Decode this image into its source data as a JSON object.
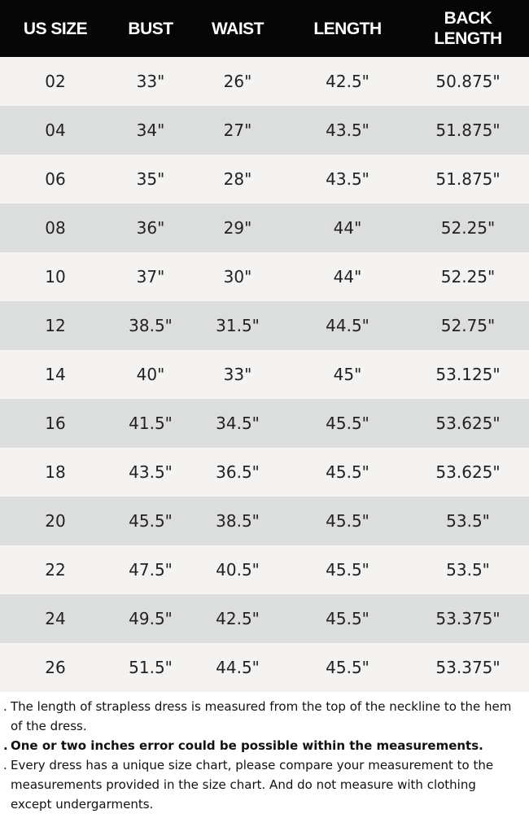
{
  "table": {
    "headers": [
      "US SIZE",
      "BUST",
      "WAIST",
      "LENGTH",
      "BACK\nLENGTH"
    ],
    "rows": [
      [
        "02",
        "33\"",
        "26\"",
        "42.5\"",
        "50.875\""
      ],
      [
        "04",
        "34\"",
        "27\"",
        "43.5\"",
        "51.875\""
      ],
      [
        "06",
        "35\"",
        "28\"",
        "43.5\"",
        "51.875\""
      ],
      [
        "08",
        "36\"",
        "29\"",
        "44\"",
        "52.25\""
      ],
      [
        "10",
        "37\"",
        "30\"",
        "44\"",
        "52.25\""
      ],
      [
        "12",
        "38.5\"",
        "31.5\"",
        "44.5\"",
        "52.75\""
      ],
      [
        "14",
        "40\"",
        "33\"",
        "45\"",
        "53.125\""
      ],
      [
        "16",
        "41.5\"",
        "34.5\"",
        "45.5\"",
        "53.625\""
      ],
      [
        "18",
        "43.5\"",
        "36.5\"",
        "45.5\"",
        "53.625\""
      ],
      [
        "20",
        "45.5\"",
        "38.5\"",
        "45.5\"",
        "53.5\""
      ],
      [
        "22",
        "47.5\"",
        "40.5\"",
        "45.5\"",
        "53.5\""
      ],
      [
        "24",
        "49.5\"",
        "42.5\"",
        "45.5\"",
        "53.375\""
      ],
      [
        "26",
        "51.5\"",
        "44.5\"",
        "45.5\"",
        "53.375\""
      ]
    ]
  },
  "notes": [
    {
      "bullet": ".",
      "text": "The length of strapless dress is measured from the top of the neckline to the hem of the dress.",
      "bold": false
    },
    {
      "bullet": ".",
      "text": "One or two inches error could be possible within the measurements.",
      "bold": true
    },
    {
      "bullet": ".",
      "text": "Every dress has a unique size chart, please compare your measurement to the measurements provided in the size chart. And do not measure with clothing except undergarments.",
      "bold": false
    }
  ],
  "colors": {
    "header_bg": "#060606",
    "row_light": "#f4f3f1",
    "row_dark": "#dcdddd"
  }
}
